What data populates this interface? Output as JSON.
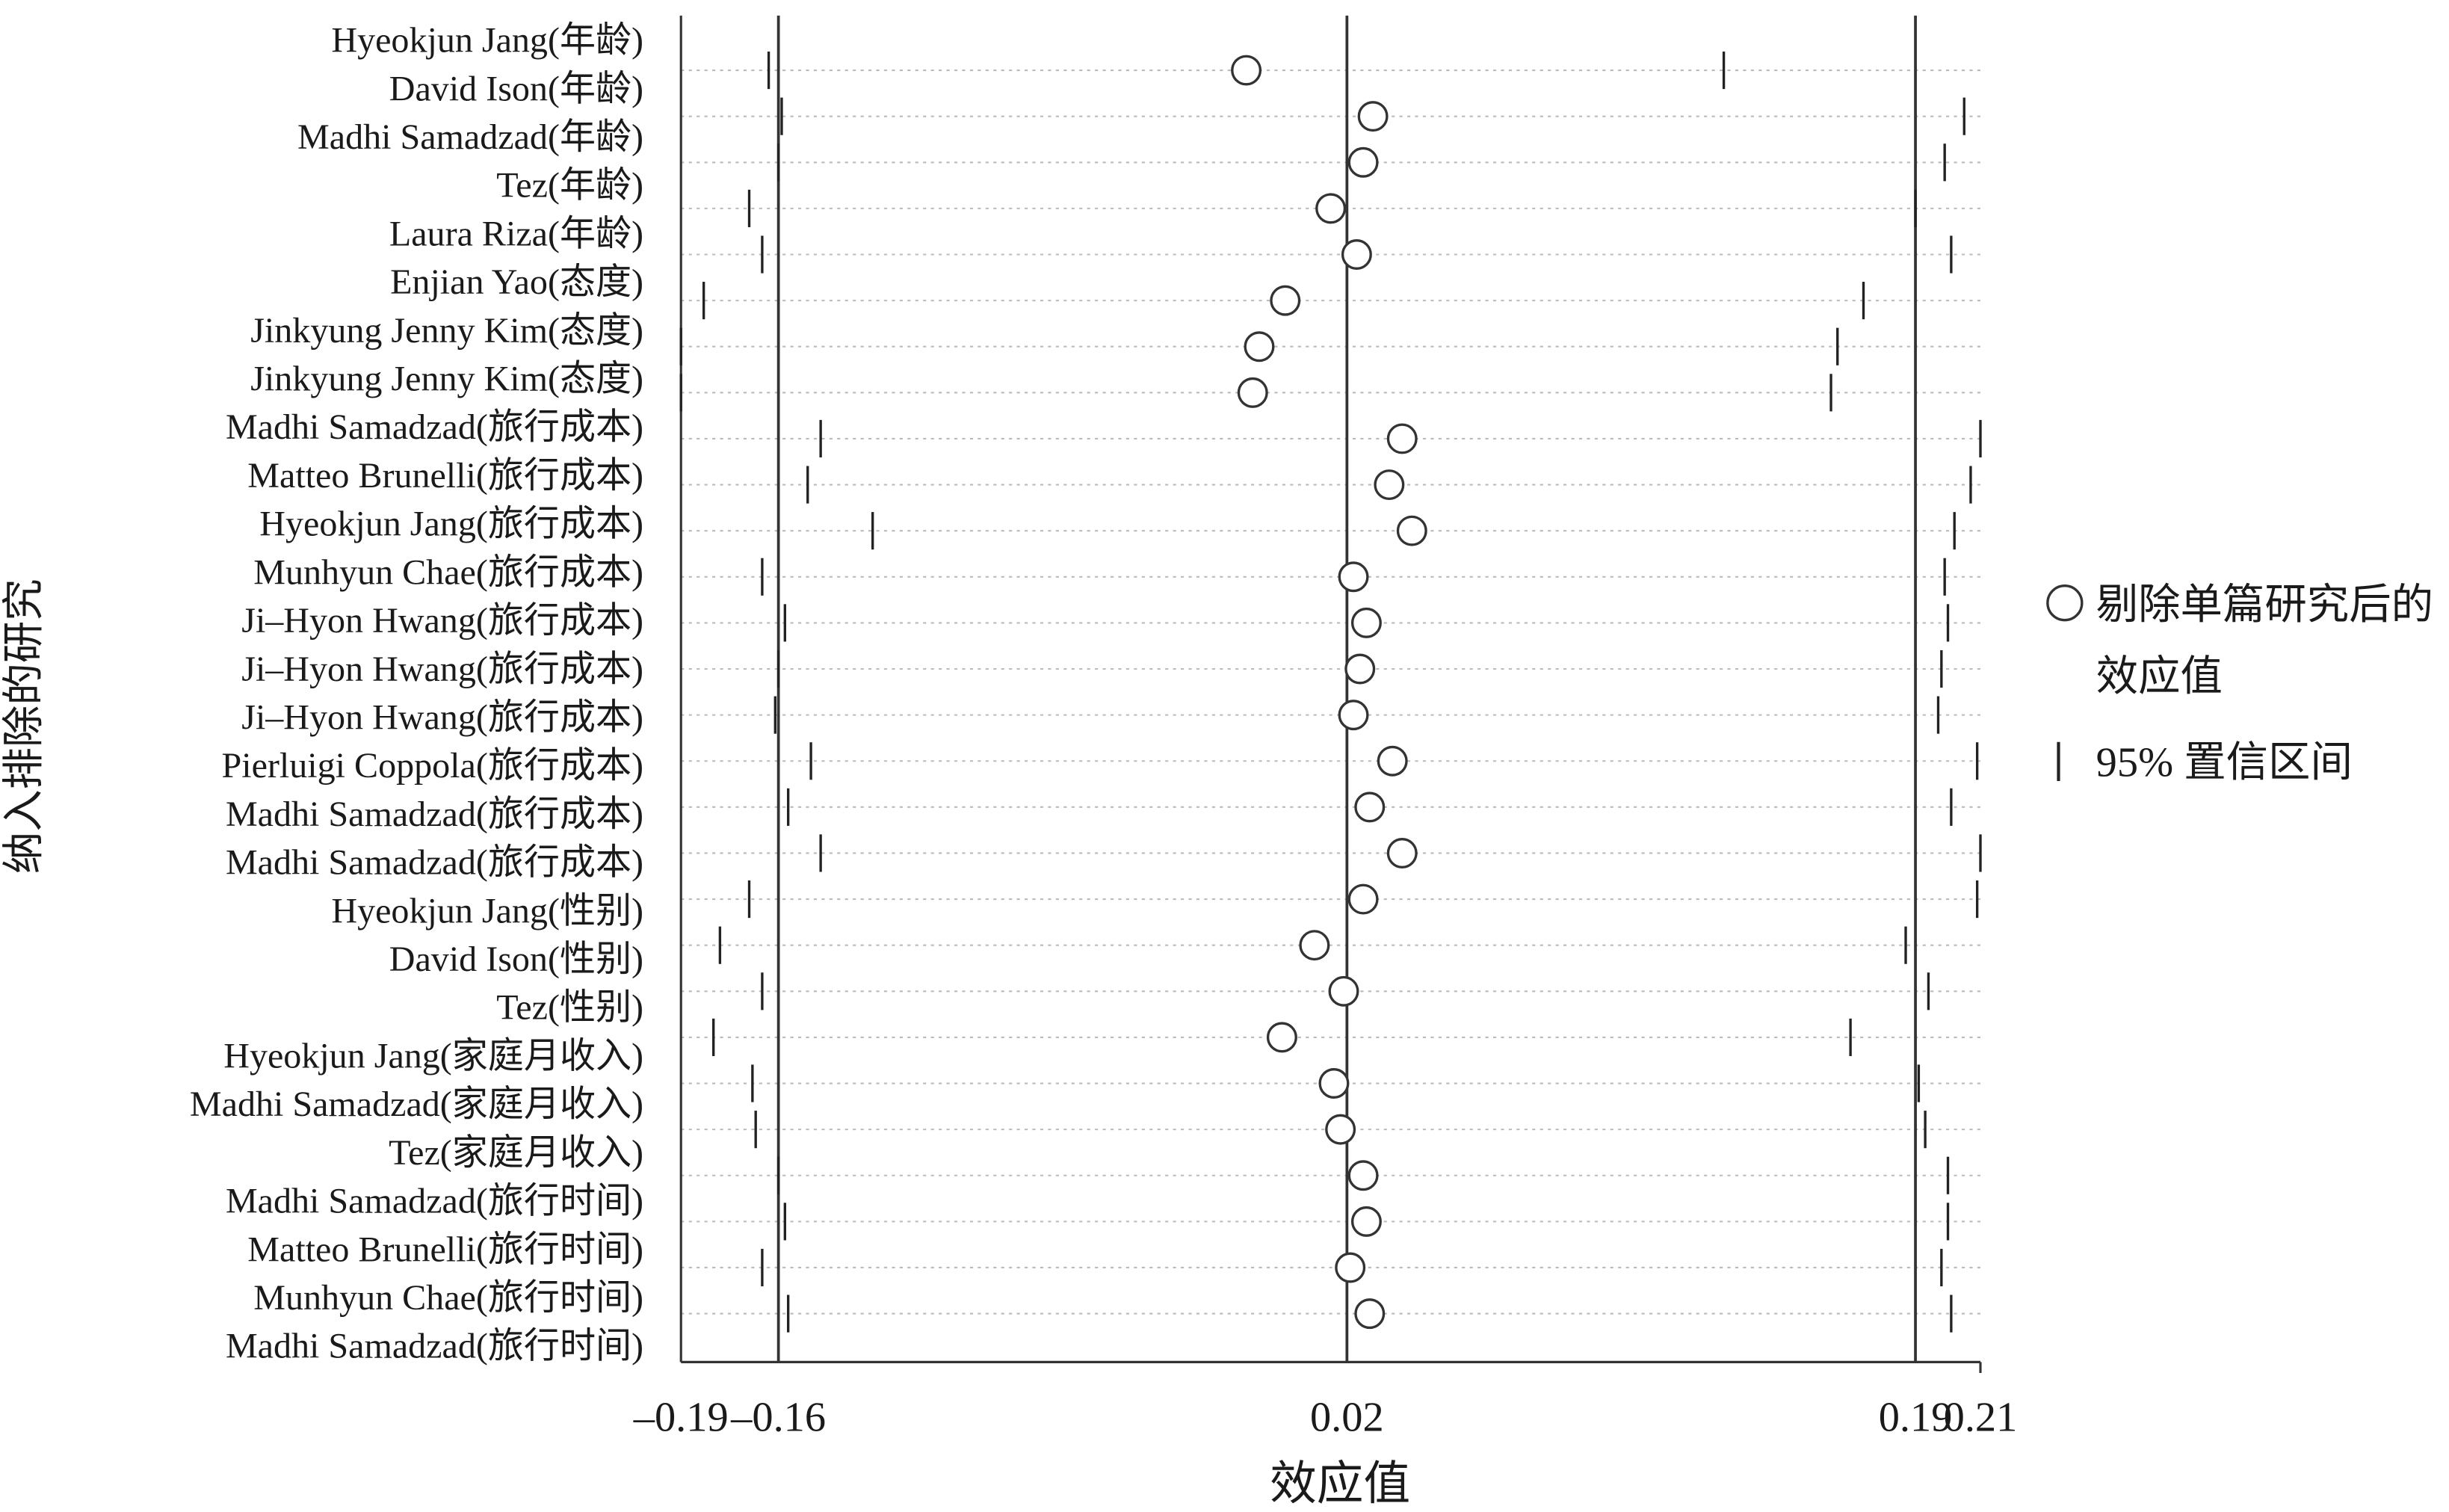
{
  "chart_data": {
    "type": "sensitivity",
    "categories": [
      "Hyeokjun Jang(年龄)",
      "David Ison(年龄)",
      "Madhi Samadzad(年龄)",
      "Tez(年龄)",
      "Laura Riza(年龄)",
      "Enjian Yao(态度)",
      "Jinkyung Jenny Kim(态度)",
      "Jinkyung Jenny Kim(态度)",
      "Madhi Samadzad(旅行成本)",
      "Matteo Brunelli(旅行成本)",
      "Hyeokjun Jang(旅行成本)",
      "Munhyun Chae(旅行成本)",
      "Ji–Hyon Hwang(旅行成本)",
      "Ji–Hyon Hwang(旅行成本)",
      "Ji–Hyon Hwang(旅行成本)",
      "Pierluigi Coppola(旅行成本)",
      "Madhi Samadzad(旅行成本)",
      "Madhi Samadzad(旅行成本)",
      "Hyeokjun Jang(性别)",
      "David Ison(性别)",
      "Tez(性别)",
      "Hyeokjun Jang(家庭月收入)",
      "Madhi Samadzad(家庭月收入)",
      "Tez(家庭月收入)",
      "Madhi Samadzad(旅行时间)",
      "Matteo Brunelli(旅行时间)",
      "Munhyun Chae(旅行时间)",
      "Madhi Samadzad(旅行时间)"
    ],
    "series": [
      {
        "name": "剔除单篇研究后的效应值",
        "values": [
          -0.016,
          0.023,
          0.02,
          0.01,
          0.018,
          -0.004,
          -0.012,
          -0.014,
          0.032,
          0.028,
          0.035,
          0.017,
          0.021,
          0.019,
          0.017,
          0.029,
          0.022,
          0.032,
          0.02,
          0.005,
          0.014,
          -0.005,
          0.011,
          0.013,
          0.02,
          0.021,
          0.016,
          0.022
        ]
      },
      {
        "name": "95% 置信区间",
        "lower": [
          -0.163,
          -0.159,
          -0.16,
          -0.169,
          -0.165,
          -0.183,
          -0.19,
          -0.19,
          -0.147,
          -0.151,
          -0.131,
          -0.165,
          -0.158,
          -0.16,
          -0.161,
          -0.15,
          -0.157,
          -0.147,
          -0.169,
          -0.178,
          -0.165,
          -0.18,
          -0.168,
          -0.167,
          -0.16,
          -0.158,
          -0.165,
          -0.157
        ],
        "upper": [
          0.131,
          0.205,
          0.199,
          0.19,
          0.201,
          0.174,
          0.166,
          0.164,
          0.21,
          0.207,
          0.202,
          0.199,
          0.2,
          0.198,
          0.197,
          0.209,
          0.201,
          0.21,
          0.209,
          0.187,
          0.194,
          0.17,
          0.191,
          0.193,
          0.2,
          0.2,
          0.198,
          0.201
        ]
      }
    ],
    "xlim": [
      -0.19,
      0.21
    ],
    "xticks": [
      {
        "value": -0.19,
        "label": "–0.19"
      },
      {
        "value": -0.16,
        "label": "–0.16"
      },
      {
        "value": 0.015,
        "label": "0.02"
      },
      0.19,
      0.21
    ],
    "x_label": "效应值",
    "y_label": "纳入排除的研究"
  }
}
